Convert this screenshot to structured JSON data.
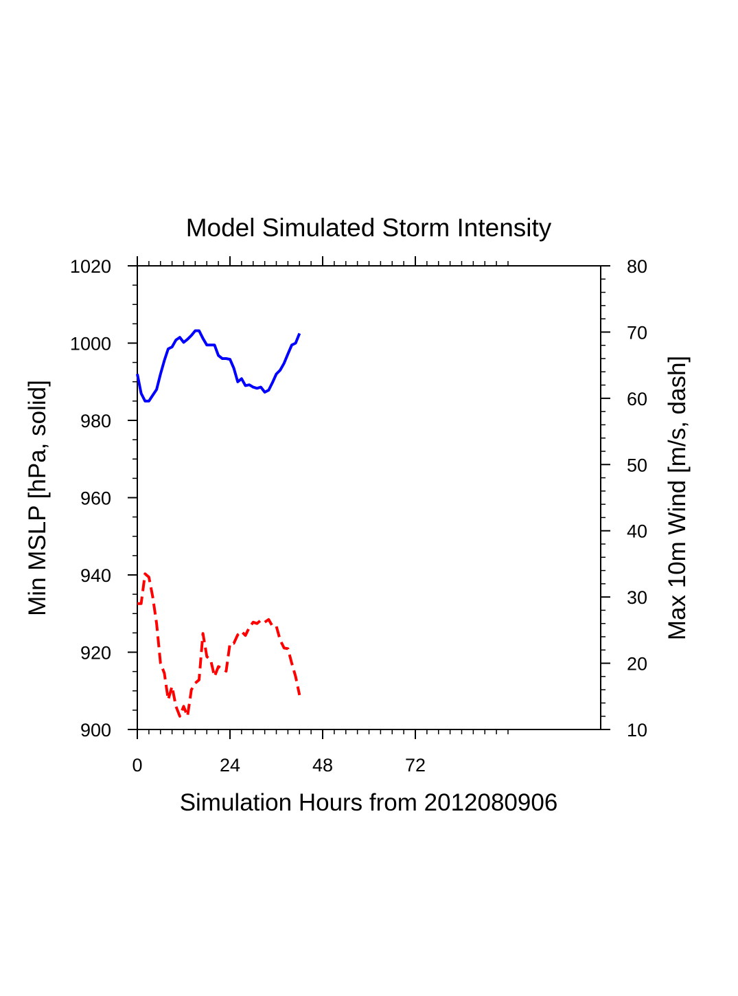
{
  "chart_data": {
    "type": "line",
    "title": "Model Simulated Storm Intensity",
    "xlabel": "Simulation Hours from 2012080906",
    "ylabel_left": "Min MSLP  [hPa, solid]",
    "ylabel_right": "Max 10m Wind  [m/s, dash]",
    "xlim": [
      0,
      120
    ],
    "ylim_left": [
      900,
      1020
    ],
    "ylim_right": [
      10,
      80
    ],
    "x_ticks": [
      0,
      24,
      48,
      72
    ],
    "y_ticks_left": [
      900,
      920,
      940,
      960,
      980,
      1000,
      1020
    ],
    "y_ticks_right": [
      10,
      20,
      30,
      40,
      50,
      60,
      70,
      80
    ],
    "grid": false,
    "series": [
      {
        "axis": "left",
        "style": "solid",
        "color": "#0000ff",
        "x": [
          0,
          1,
          2,
          3,
          4,
          5,
          6,
          7,
          8,
          9,
          10,
          11,
          12,
          13,
          14,
          15,
          16,
          17,
          18,
          19,
          20,
          21,
          22,
          23,
          24,
          25,
          26,
          27,
          28,
          29,
          30,
          31,
          32,
          33,
          34,
          35,
          36,
          37,
          38,
          39,
          40,
          41,
          42
        ],
        "values": [
          992,
          987,
          985,
          985,
          986.5,
          988,
          992,
          995.5,
          998.5,
          999,
          1000.8,
          1001.5,
          1000.2,
          1001,
          1002,
          1003.2,
          1003.2,
          1001.2,
          999.5,
          999.5,
          999.5,
          996.8,
          996,
          996,
          995.8,
          993.5,
          990,
          990.8,
          989,
          989.2,
          988.6,
          988.3,
          988.6,
          987.3,
          987.8,
          989.8,
          992,
          993,
          994.8,
          997.2,
          999.5,
          1000,
          1002.5
        ]
      },
      {
        "axis": "right",
        "style": "dash",
        "color": "#ff0000",
        "x": [
          0,
          1,
          2,
          3,
          4,
          5,
          6,
          7,
          8,
          9,
          10,
          11,
          12,
          13,
          14,
          15,
          16,
          17,
          18,
          19,
          20,
          21,
          22,
          23,
          24,
          25,
          26,
          27,
          28,
          29,
          30,
          31,
          32,
          33,
          34,
          35,
          36,
          37,
          38,
          39,
          40,
          41,
          42
        ],
        "values": [
          29,
          29,
          33.5,
          33,
          30,
          26,
          20,
          18.5,
          14.5,
          16.5,
          13.5,
          12,
          13.5,
          12,
          16,
          17,
          17.5,
          24.5,
          21,
          20.5,
          18,
          19.5,
          19.2,
          18.8,
          23,
          23,
          24.3,
          24.8,
          24.2,
          25.4,
          26.2,
          26,
          26.5,
          26.2,
          26.6,
          25.6,
          25.6,
          23.5,
          22.3,
          22.2,
          20,
          18,
          15.2
        ]
      }
    ]
  }
}
